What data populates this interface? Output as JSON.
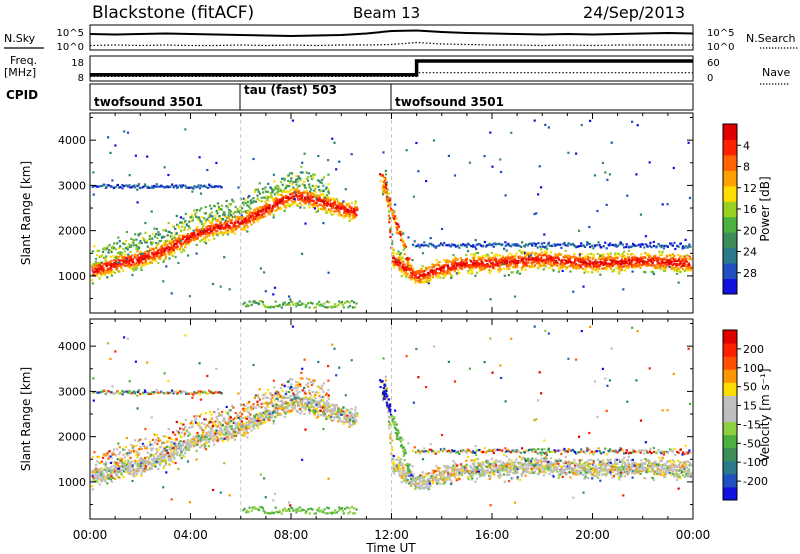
{
  "header": {
    "station": "Blackstone (fitACF)",
    "beam": "Beam 13",
    "date": "24/Sep/2013"
  },
  "left_labels": {
    "nsky": "N.Sky",
    "freq": "Freq.",
    "freq_unit": "[MHz]",
    "cpid": "CPID"
  },
  "right_labels": {
    "nsearch": "N.Search",
    "nave": "Nave"
  },
  "colors": {
    "power_scale": [
      "#1010e0",
      "#2050c0",
      "#2a7a8a",
      "#3e8c5a",
      "#4cb040",
      "#9ad020",
      "#ffdc00",
      "#ffa000",
      "#ff6400",
      "#ff2000",
      "#e00000"
    ],
    "velocity_scale": [
      "#1010e0",
      "#2050c0",
      "#2a7a8a",
      "#3e8c5a",
      "#4cb040",
      "#8cd040",
      "#bebebe",
      "#c0c0c0",
      "#ffdc00",
      "#ff9600",
      "#ff5000",
      "#ff2000",
      "#e00000"
    ],
    "black": "#000000",
    "white": "#ffffff"
  },
  "chart_data": [
    {
      "type": "line",
      "panel": "noise",
      "left_ticks": [
        "10^5",
        "10^0"
      ],
      "right_ticks": [
        "10^5",
        "10^0"
      ],
      "series": [
        {
          "name": "N.Sky",
          "x": [
            0,
            1,
            2,
            3,
            4,
            5,
            6,
            7,
            8,
            9,
            10,
            11,
            12,
            13,
            14,
            15,
            16,
            17,
            18,
            19,
            20,
            21,
            22,
            23,
            24
          ],
          "y": [
            3.2,
            3.1,
            3.2,
            3.3,
            3.2,
            3.1,
            3.0,
            2.9,
            2.8,
            2.9,
            3.0,
            3.3,
            3.8,
            3.9,
            3.6,
            3.4,
            3.3,
            3.2,
            3.1,
            3.2,
            3.1,
            3.2,
            3.3,
            3.4,
            3.3
          ]
        },
        {
          "name": "N.Search",
          "x": [
            0,
            1,
            2,
            3,
            4,
            5,
            6,
            7,
            8,
            9,
            10,
            11,
            12,
            13,
            14,
            15,
            16,
            17,
            18,
            19,
            20,
            21,
            22,
            23,
            24
          ],
          "y": [
            0.9,
            1.0,
            0.9,
            1.0,
            0.9,
            0.9,
            1.0,
            0.9,
            1.0,
            0.9,
            1.0,
            1.0,
            1.1,
            1.5,
            1.2,
            1.1,
            1.0,
            1.0,
            0.9,
            1.0,
            0.9,
            1.0,
            1.0,
            1.0,
            1.0
          ]
        }
      ]
    },
    {
      "type": "line",
      "panel": "frequency",
      "left_ticks": [
        "18",
        "8"
      ],
      "right_ticks": [
        "60",
        "0"
      ],
      "series": [
        {
          "name": "Freq.",
          "x": [
            0,
            13,
            13,
            24
          ],
          "y": [
            10.5,
            10.5,
            16.0,
            16.0
          ]
        },
        {
          "name": "Nave",
          "x": [
            0,
            13,
            13,
            24
          ],
          "y": [
            11,
            11,
            20,
            20
          ]
        }
      ]
    },
    {
      "type": "table",
      "panel": "cpid",
      "segments": [
        {
          "start": 0,
          "end": 6,
          "label": "twofsound 3501"
        },
        {
          "start": 6,
          "end": 12,
          "label": "tau (fast) 503"
        },
        {
          "start": 12,
          "end": 24,
          "label": "twofsound 3501"
        }
      ]
    },
    {
      "type": "heatmap",
      "panel": "power",
      "ylabel": "Slant Range [km]",
      "ylim": [
        180,
        4600
      ],
      "yticks": [
        "1000",
        "2000",
        "3000",
        "4000"
      ],
      "colorbar": {
        "label": "Power [dB]",
        "ticks": [
          "4",
          "8",
          "12",
          "16",
          "20",
          "24",
          "28"
        ],
        "range": [
          0,
          32
        ]
      },
      "main_band_center_km": [
        [
          0,
          1100
        ],
        [
          1,
          1300
        ],
        [
          2,
          1400
        ],
        [
          3,
          1600
        ],
        [
          4,
          1900
        ],
        [
          5,
          2100
        ],
        [
          6,
          2200
        ],
        [
          7,
          2500
        ],
        [
          8,
          2800
        ],
        [
          9,
          2700
        ],
        [
          10,
          2500
        ],
        [
          11,
          2400
        ],
        [
          11.7,
          3200
        ],
        [
          12,
          1400
        ],
        [
          13,
          1000
        ],
        [
          14,
          1200
        ],
        [
          15,
          1300
        ],
        [
          16,
          1300
        ],
        [
          18,
          1400
        ],
        [
          20,
          1300
        ],
        [
          22,
          1350
        ],
        [
          24,
          1300
        ]
      ]
    },
    {
      "type": "heatmap",
      "panel": "velocity",
      "ylabel": "Slant Range [km]",
      "xlabel": "Time UT",
      "ylim": [
        180,
        4600
      ],
      "yticks": [
        "1000",
        "2000",
        "3000",
        "4000"
      ],
      "x": [
        "00:00",
        "04:00",
        "08:00",
        "12:00",
        "16:00",
        "20:00",
        "00:00"
      ],
      "colorbar": {
        "label": "Velocity [m s⁻¹]",
        "ticks": [
          "200",
          "100",
          "50",
          "15",
          "-15",
          "-50",
          "-100",
          "-200"
        ]
      }
    }
  ]
}
